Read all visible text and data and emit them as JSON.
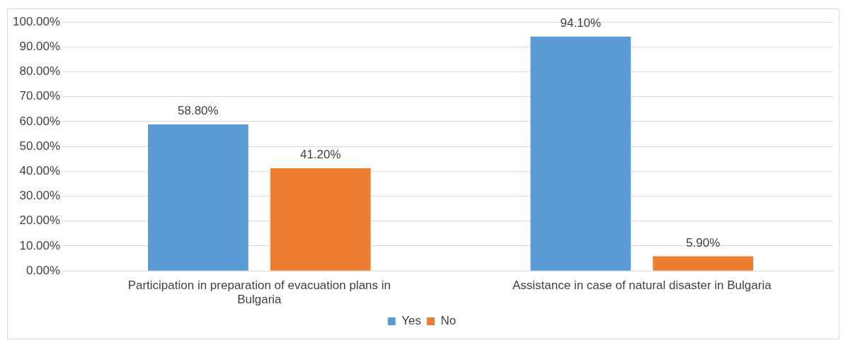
{
  "chart_data": {
    "type": "bar",
    "categories": [
      "Participation in preparation of evacuation plans in Bulgaria",
      "Assistance in case of natural disaster in Bulgaria"
    ],
    "series": [
      {
        "name": "Yes",
        "color": "#5b9bd5",
        "values": [
          58.8,
          94.1
        ],
        "value_labels": [
          "58.80%",
          "94.10%"
        ]
      },
      {
        "name": "No",
        "color": "#ed7d31",
        "values": [
          41.2,
          5.9
        ],
        "value_labels": [
          "41.20%",
          "5.90%"
        ]
      }
    ],
    "ylim": [
      0,
      100
    ],
    "yticks": [
      {
        "value": 0,
        "label": "0.00%"
      },
      {
        "value": 10,
        "label": "10.00%"
      },
      {
        "value": 20,
        "label": "20.00%"
      },
      {
        "value": 30,
        "label": "30.00%"
      },
      {
        "value": 40,
        "label": "40.00%"
      },
      {
        "value": 50,
        "label": "50.00%"
      },
      {
        "value": 60,
        "label": "60.00%"
      },
      {
        "value": 70,
        "label": "70.00%"
      },
      {
        "value": 80,
        "label": "80.00%"
      },
      {
        "value": 90,
        "label": "90.00%"
      },
      {
        "value": 100,
        "label": "100.00%"
      }
    ],
    "grid": "y",
    "legend": "bottom"
  }
}
